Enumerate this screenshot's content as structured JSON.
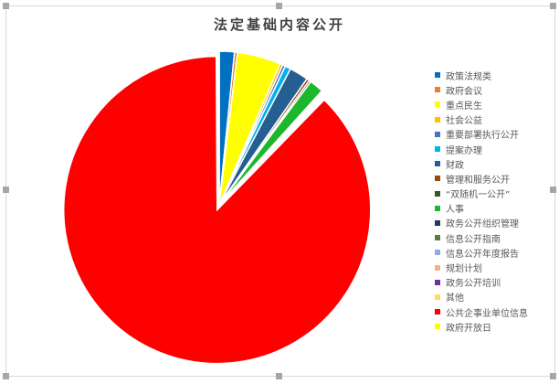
{
  "chart_data": {
    "type": "pie",
    "title": "法定基础内容公开",
    "legend_position": "right",
    "categories": [
      "政策法规类",
      "政府会议",
      "重点民生",
      "社会公益",
      "重要部署执行公开",
      "提案办理",
      "财政",
      "管理和服务公开",
      "“双随机一公开”",
      "人事",
      "政务公开组织管理",
      "信息公开指南",
      "信息公开年度报告",
      "规划计划",
      "政务公开培训",
      "其他",
      "公共企事业单位信息",
      "政府开放日"
    ],
    "values": [
      1.6,
      0.3,
      4.6,
      0.3,
      0.3,
      0.6,
      2.0,
      0.3,
      0.2,
      1.5,
      0.1,
      0.1,
      0.1,
      0.1,
      0.1,
      0.1,
      87.7,
      0.1
    ],
    "colors": [
      "#0070c0",
      "#ed7d31",
      "#ffff00",
      "#ffc000",
      "#4472c4",
      "#00b0f0",
      "#255e91",
      "#9e480e",
      "#375623",
      "#1db72e",
      "#203864",
      "#548235",
      "#8faadc",
      "#f4b183",
      "#7030a0",
      "#ffd966",
      "#ff0000",
      "#ffff00"
    ],
    "exploded": [
      "公共企事业单位信息"
    ]
  }
}
